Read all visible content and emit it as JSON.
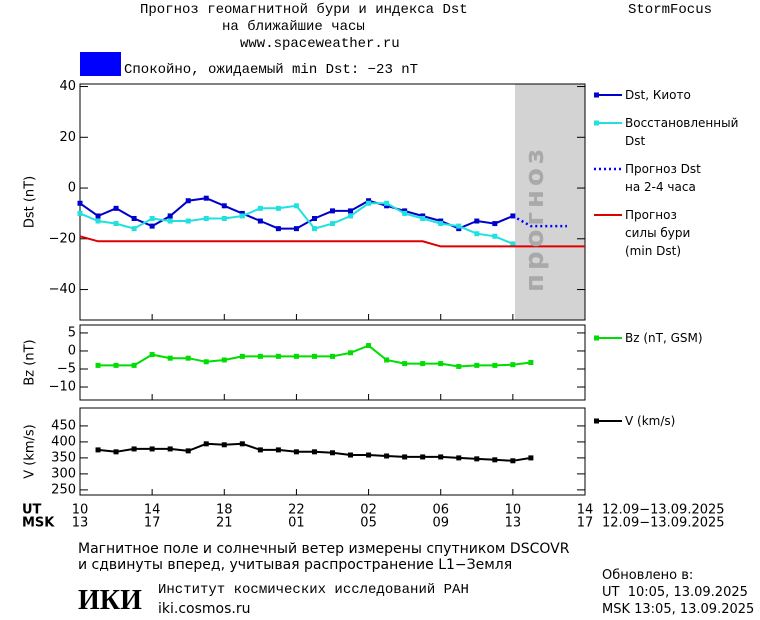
{
  "header": {
    "title": "Прогноз геомагнитной бури и индекса Dst",
    "subtitle": "на ближайшие часы",
    "site": "www.spaceweather.ru",
    "brand": "StormFocus"
  },
  "status": {
    "text": "Спокойно, ожидаемый min Dst: −23 nT",
    "color": "#0000ff"
  },
  "chart_data": [
    {
      "type": "line",
      "ylabel": "Dst (nT)",
      "ylim": [
        -52,
        41
      ],
      "yticks": [
        40,
        20,
        0,
        {
          "value": -20,
          "label": "−20"
        },
        {
          "value": -40,
          "label": "−40"
        }
      ],
      "shade_label": "прогноз",
      "series": [
        {
          "name": "Dst, Киото",
          "color": "#0000cc",
          "marker": true,
          "values": [
            -6,
            -11,
            -8,
            -12,
            -15,
            -11,
            -5,
            -4,
            -7,
            -10,
            -13,
            -16,
            -16,
            -12,
            -9,
            -9,
            -5,
            -7,
            -9,
            -11,
            -13,
            -16,
            -13,
            -14,
            -11,
            null,
            null,
            null,
            null
          ]
        },
        {
          "name": "Восстановленный\nDst",
          "color": "#20e0e0",
          "marker": true,
          "values": [
            -10,
            -13,
            -14,
            -16,
            -12,
            -13,
            -13,
            -12,
            -12,
            -11,
            -8,
            -8,
            -7,
            -16,
            -14,
            -11,
            -6,
            -6,
            -10,
            -12,
            -14,
            -15,
            -18,
            -19,
            -22,
            null,
            null,
            null,
            null
          ]
        },
        {
          "name": "Прогноз Dst\nна 2-4 часа",
          "color": "#0000ff",
          "dash": "2,3",
          "marker": false,
          "values": [
            null,
            null,
            null,
            null,
            null,
            null,
            null,
            null,
            null,
            null,
            null,
            null,
            null,
            null,
            null,
            null,
            null,
            null,
            null,
            null,
            null,
            null,
            null,
            null,
            -11,
            -15,
            -15,
            -15,
            null
          ]
        },
        {
          "name": "Прогноз\nсилы бури\n(min Dst)",
          "color": "#dd0000",
          "marker": false,
          "values": [
            -19,
            -21,
            -21,
            -21,
            -21,
            -21,
            -21,
            -21,
            -21,
            -21,
            -21,
            -21,
            -21,
            -21,
            -21,
            -21,
            -21,
            -21,
            -21,
            -21,
            -23,
            -23,
            -23,
            -23,
            -23,
            -23,
            -23,
            -23,
            -23
          ]
        }
      ]
    },
    {
      "type": "line",
      "ylabel": "Bz (nT)",
      "ylim": [
        -13.6,
        7.2
      ],
      "yticks": [
        5,
        0,
        {
          "value": -5,
          "label": "−5"
        },
        {
          "value": -10,
          "label": "−10"
        }
      ],
      "series": [
        {
          "name": "Bz (nT, GSM)",
          "color": "#00dd00",
          "marker": true,
          "values": [
            null,
            -4,
            -4,
            -4,
            -1,
            -2,
            -2,
            -3,
            -2.5,
            -1.5,
            -1.5,
            -1.5,
            -1.5,
            -1.5,
            -1.5,
            -0.5,
            1.5,
            -2.5,
            -3.5,
            -3.5,
            -3.5,
            -4.3,
            -4,
            -4,
            -3.8,
            -3.2,
            null,
            null,
            null
          ]
        }
      ]
    },
    {
      "type": "line",
      "ylabel": "V (km/s)",
      "ylim": [
        234,
        506
      ],
      "yticks": [
        250,
        300,
        350,
        400,
        450
      ],
      "series": [
        {
          "name": "V (km/s)",
          "color": "#000000",
          "marker": true,
          "values": [
            null,
            375,
            369,
            378,
            378,
            378,
            372,
            394,
            391,
            394,
            375,
            375,
            369,
            369,
            366,
            359,
            359,
            356,
            353,
            353,
            353,
            350,
            347,
            344,
            341,
            350,
            null,
            null,
            null
          ]
        }
      ]
    }
  ],
  "x_axes": [
    {
      "name": "UT",
      "labels": [
        "10",
        null,
        null,
        null,
        "14",
        null,
        null,
        null,
        "18",
        null,
        null,
        null,
        "22",
        null,
        null,
        null,
        "02",
        null,
        null,
        null,
        "06",
        null,
        null,
        null,
        "10",
        null,
        null,
        null,
        "14"
      ],
      "range": "12.09−13.09.2025"
    },
    {
      "name": "MSK",
      "labels": [
        "13",
        null,
        null,
        null,
        "17",
        null,
        null,
        null,
        "21",
        null,
        null,
        null,
        "01",
        null,
        null,
        null,
        "05",
        null,
        null,
        null,
        "09",
        null,
        null,
        null,
        "13",
        null,
        null,
        null,
        "17"
      ],
      "range": "12.09−13.09.2025"
    }
  ],
  "footer": {
    "note": [
      "Магнитное поле и солнечный ветер измерены спутником DSCOVR",
      "и сдвинуты вперед, учитывая распространение L1−Земля"
    ],
    "logo": "ИКИ",
    "institute": "Институт космических исследований РАН",
    "url": "iki.cosmos.ru",
    "updated": [
      "Обновлено в:",
      "UT  10:05, 13.09.2025",
      "MSK 13:05, 13.09.2025"
    ]
  }
}
